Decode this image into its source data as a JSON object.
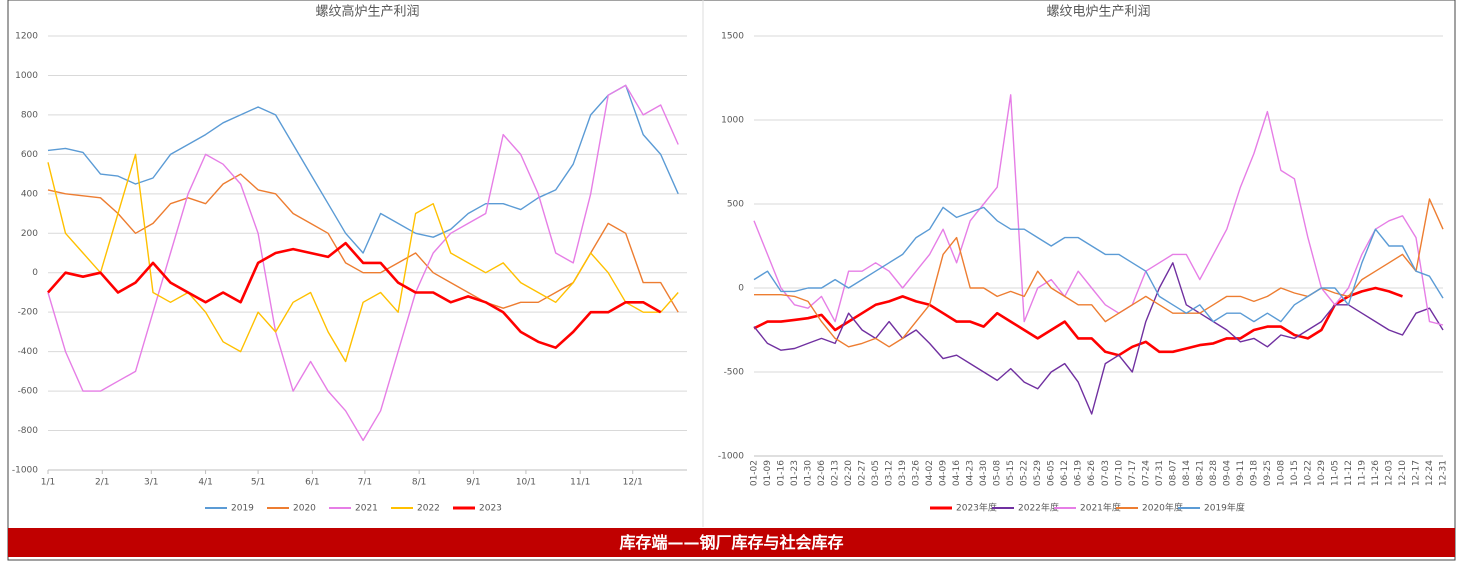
{
  "chart_data": [
    {
      "type": "line",
      "title": "螺纹高炉生产利润",
      "x": [
        1,
        11,
        21,
        31,
        41,
        51,
        61,
        71,
        81,
        91,
        101,
        111,
        121,
        131,
        141,
        151,
        161,
        171,
        181,
        191,
        201,
        211,
        221,
        231,
        241,
        251,
        261,
        271,
        281,
        291,
        301,
        311,
        321,
        331,
        341,
        351,
        361
      ],
      "xlim": [
        1,
        366
      ],
      "xticks": [
        {
          "value": 1,
          "label": "1/1"
        },
        {
          "value": 32,
          "label": "2/1"
        },
        {
          "value": 60,
          "label": "3/1"
        },
        {
          "value": 91,
          "label": "4/1"
        },
        {
          "value": 121,
          "label": "5/1"
        },
        {
          "value": 152,
          "label": "6/1"
        },
        {
          "value": 182,
          "label": "7/1"
        },
        {
          "value": 213,
          "label": "8/1"
        },
        {
          "value": 244,
          "label": "9/1"
        },
        {
          "value": 274,
          "label": "10/1"
        },
        {
          "value": 305,
          "label": "11/1"
        },
        {
          "value": 335,
          "label": "12/1"
        }
      ],
      "ylim": [
        -1000,
        1200
      ],
      "yticks": [
        -1000,
        -800,
        -600,
        -400,
        -200,
        0,
        200,
        400,
        600,
        800,
        1000,
        1200
      ],
      "grid": true,
      "series": [
        {
          "name": "2019",
          "color": "#5b9bd5",
          "values": [
            620,
            630,
            610,
            500,
            490,
            450,
            480,
            600,
            650,
            700,
            760,
            800,
            840,
            800,
            650,
            500,
            350,
            200,
            100,
            300,
            250,
            200,
            180,
            220,
            300,
            350,
            350,
            320,
            380,
            420,
            550,
            800,
            900,
            950,
            700,
            600,
            400
          ]
        },
        {
          "name": "2020",
          "color": "#ed7d31",
          "values": [
            420,
            400,
            390,
            380,
            300,
            200,
            250,
            350,
            380,
            350,
            450,
            500,
            420,
            400,
            300,
            250,
            200,
            50,
            0,
            0,
            50,
            100,
            0,
            -50,
            -100,
            -150,
            -180,
            -150,
            -150,
            -100,
            -50,
            100,
            250,
            200,
            -50,
            -50,
            -200
          ]
        },
        {
          "name": "2021",
          "color": "#e67ee6",
          "values": [
            -100,
            -400,
            -600,
            -600,
            -550,
            -500,
            -200,
            100,
            400,
            600,
            550,
            450,
            200,
            -300,
            -600,
            -450,
            -600,
            -700,
            -850,
            -700,
            -400,
            -100,
            100,
            200,
            250,
            300,
            700,
            600,
            400,
            100,
            50,
            400,
            900,
            950,
            800,
            850,
            650
          ]
        },
        {
          "name": "2022",
          "color": "#ffc000",
          "values": [
            560,
            200,
            100,
            0,
            300,
            600,
            -100,
            -150,
            -100,
            -200,
            -350,
            -400,
            -200,
            -300,
            -150,
            -100,
            -300,
            -450,
            -150,
            -100,
            -200,
            300,
            350,
            100,
            50,
            0,
            50,
            -50,
            -100,
            -150,
            -50,
            100,
            0,
            -150,
            -200,
            -200,
            -100
          ]
        },
        {
          "name": "2023",
          "color": "#ff0000",
          "values": [
            -100,
            0,
            -20,
            0,
            -100,
            -50,
            50,
            -50,
            -100,
            -150,
            -100,
            -150,
            50,
            100,
            120,
            100,
            80,
            150,
            50,
            50,
            -50,
            -100,
            -100,
            -150,
            -120,
            -150,
            -200,
            -300,
            -350,
            -380,
            -300,
            -200,
            -200,
            -150,
            -150,
            -200,
            null
          ]
        }
      ]
    },
    {
      "type": "line",
      "title": "螺纹电炉生产利润",
      "categories": [
        "01-02",
        "01-09",
        "01-16",
        "01-23",
        "01-30",
        "02-06",
        "02-13",
        "02-20",
        "02-27",
        "03-05",
        "03-12",
        "03-19",
        "03-26",
        "04-02",
        "04-09",
        "04-16",
        "04-23",
        "04-30",
        "05-08",
        "05-15",
        "05-22",
        "05-29",
        "06-05",
        "06-12",
        "06-19",
        "06-26",
        "07-03",
        "07-10",
        "07-17",
        "07-24",
        "07-31",
        "08-07",
        "08-14",
        "08-21",
        "08-28",
        "09-04",
        "09-11",
        "09-18",
        "09-25",
        "10-08",
        "10-15",
        "10-22",
        "10-29",
        "11-05",
        "11-12",
        "11-19",
        "11-26",
        "12-03",
        "12-10",
        "12-17",
        "12-24",
        "12-31"
      ],
      "ylim": [
        -1000,
        1500
      ],
      "yticks": [
        -1000,
        -500,
        0,
        500,
        1000,
        1500
      ],
      "grid": true,
      "series": [
        {
          "name": "2023年度",
          "color": "#ff0000",
          "values": [
            -240,
            -200,
            -200,
            -190,
            -180,
            -160,
            -250,
            -200,
            -150,
            -100,
            -80,
            -50,
            -80,
            -100,
            -150,
            -200,
            -200,
            -230,
            -150,
            -200,
            -250,
            -300,
            -250,
            -200,
            -300,
            -300,
            -380,
            -400,
            -350,
            -320,
            -380,
            -380,
            -360,
            -340,
            -330,
            -300,
            -300,
            -250,
            -230,
            -230,
            -280,
            -300,
            -250,
            -100,
            -50,
            -20,
            0,
            -20,
            -50,
            null,
            null,
            null
          ]
        },
        {
          "name": "2022年度",
          "color": "#7030a0",
          "values": [
            -230,
            -330,
            -370,
            -360,
            -330,
            -300,
            -330,
            -150,
            -250,
            -300,
            -200,
            -300,
            -250,
            -330,
            -420,
            -400,
            -450,
            -500,
            -550,
            -480,
            -560,
            -600,
            -500,
            -450,
            -560,
            -750,
            -450,
            -400,
            -500,
            -200,
            0,
            150,
            -100,
            -150,
            -200,
            -250,
            -320,
            -300,
            -350,
            -280,
            -300,
            -250,
            -200,
            -100,
            -100,
            -150,
            -200,
            -250,
            -280,
            -150,
            -120,
            -250
          ]
        },
        {
          "name": "2021年度",
          "color": "#e67ee6",
          "values": [
            400,
            200,
            0,
            -100,
            -120,
            -50,
            -200,
            100,
            100,
            150,
            100,
            0,
            100,
            200,
            350,
            150,
            400,
            500,
            600,
            1150,
            -200,
            0,
            50,
            -50,
            100,
            0,
            -100,
            -150,
            -100,
            100,
            150,
            200,
            200,
            50,
            200,
            350,
            600,
            800,
            1050,
            700,
            650,
            300,
            0,
            -100,
            0,
            200,
            350,
            400,
            430,
            300,
            -200,
            -220
          ]
        },
        {
          "name": "2020年度",
          "color": "#ed7d31",
          "values": [
            -40,
            -40,
            -40,
            -50,
            -80,
            -200,
            -300,
            -350,
            -330,
            -300,
            -350,
            -300,
            -200,
            -100,
            200,
            300,
            0,
            0,
            -50,
            -20,
            -50,
            100,
            0,
            -50,
            -100,
            -100,
            -200,
            -150,
            -100,
            -50,
            -100,
            -150,
            -150,
            -150,
            -100,
            -50,
            -50,
            -80,
            -50,
            0,
            -30,
            -50,
            0,
            -30,
            -50,
            50,
            100,
            150,
            200,
            100,
            530,
            350
          ]
        },
        {
          "name": "2019年度",
          "color": "#5b9bd5",
          "values": [
            50,
            100,
            -20,
            -20,
            0,
            0,
            50,
            0,
            50,
            100,
            150,
            200,
            300,
            350,
            480,
            420,
            450,
            480,
            400,
            350,
            350,
            300,
            250,
            300,
            300,
            250,
            200,
            200,
            150,
            100,
            -50,
            -100,
            -150,
            -100,
            -200,
            -150,
            -150,
            -200,
            -150,
            -200,
            -100,
            -50,
            0,
            0,
            -100,
            150,
            350,
            250,
            250,
            100,
            70,
            -60
          ]
        }
      ]
    }
  ],
  "banner": {
    "text": "库存端——钢厂库存与社会库存"
  }
}
